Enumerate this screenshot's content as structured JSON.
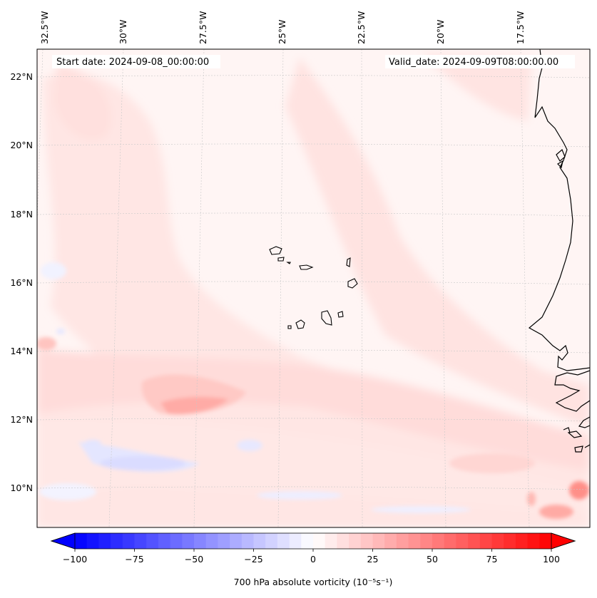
{
  "header": {
    "start_date": "Start date: 2024-09-08_00:00:00",
    "valid_date": "Valid_date: 2024-09-09T08:00:00.00"
  },
  "map": {
    "projection": "conic",
    "lon_range": [
      -33.5,
      -14.5
    ],
    "lat_range": [
      9,
      23
    ],
    "lon_labels": [
      "32.5°W",
      "30°W",
      "27.5°W",
      "25°W",
      "22.5°W",
      "20°W",
      "17.5°W"
    ],
    "lat_labels": [
      "22°N",
      "20°N",
      "18°N",
      "16°N",
      "14°N",
      "12°N",
      "10°N"
    ],
    "features": [
      "Cape Verde islands",
      "West African coastline"
    ]
  },
  "colorbar": {
    "label": "700 hPa absolute vorticity (10⁻⁵s⁻¹)",
    "ticks": [
      "−100",
      "−75",
      "−50",
      "−25",
      "0",
      "25",
      "50",
      "75",
      "100"
    ],
    "range": [
      -100,
      100
    ],
    "colormap": "bwr",
    "low_color": "#0000ff",
    "mid_color": "#ffffff",
    "high_color": "#ff0000"
  }
}
